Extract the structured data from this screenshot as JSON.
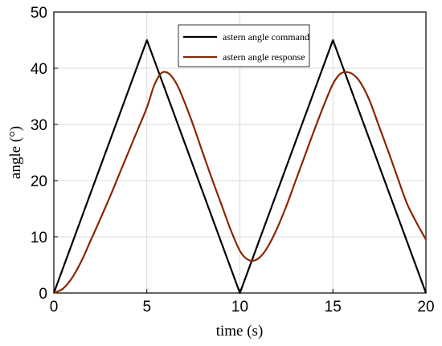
{
  "chart_data": {
    "type": "line",
    "xlabel": "time (s)",
    "ylabel": "angle (°)",
    "xlim": [
      0,
      20
    ],
    "ylim": [
      0,
      50
    ],
    "xticks": [
      0,
      5,
      10,
      15,
      20
    ],
    "yticks": [
      0,
      10,
      20,
      30,
      40,
      50
    ],
    "grid": true,
    "legend_position": "top-center",
    "series": [
      {
        "name": "astern angle command",
        "color": "#000000",
        "x": [
          0,
          5,
          10,
          15,
          20
        ],
        "y": [
          0,
          45,
          0,
          45,
          0
        ]
      },
      {
        "name": "astern angle response",
        "color": "#8B2500",
        "x": [
          0,
          0.5,
          1,
          1.5,
          2,
          2.5,
          3,
          3.5,
          4,
          4.5,
          5,
          5.4,
          5.8,
          6.2,
          6.6,
          7,
          7.5,
          8,
          8.5,
          9,
          9.5,
          10,
          10.4,
          10.8,
          11.2,
          11.6,
          12,
          12.5,
          13,
          13.5,
          14,
          14.5,
          15,
          15.4,
          15.8,
          16.2,
          16.6,
          17,
          17.5,
          18,
          18.5,
          19,
          19.5,
          20
        ],
        "y": [
          0,
          0.8,
          2.8,
          5.8,
          9.5,
          13.2,
          17,
          21,
          25,
          29,
          33,
          37,
          39.2,
          39,
          37.2,
          34.2,
          29.8,
          25,
          20.3,
          15.8,
          11.3,
          7.5,
          6,
          5.8,
          6.8,
          8.8,
          11.5,
          15.5,
          20,
          24.5,
          29,
          33.3,
          37.2,
          39,
          39.3,
          38.6,
          36.8,
          34,
          29.5,
          25,
          20.3,
          15.8,
          12.5,
          9.5
        ]
      }
    ]
  }
}
